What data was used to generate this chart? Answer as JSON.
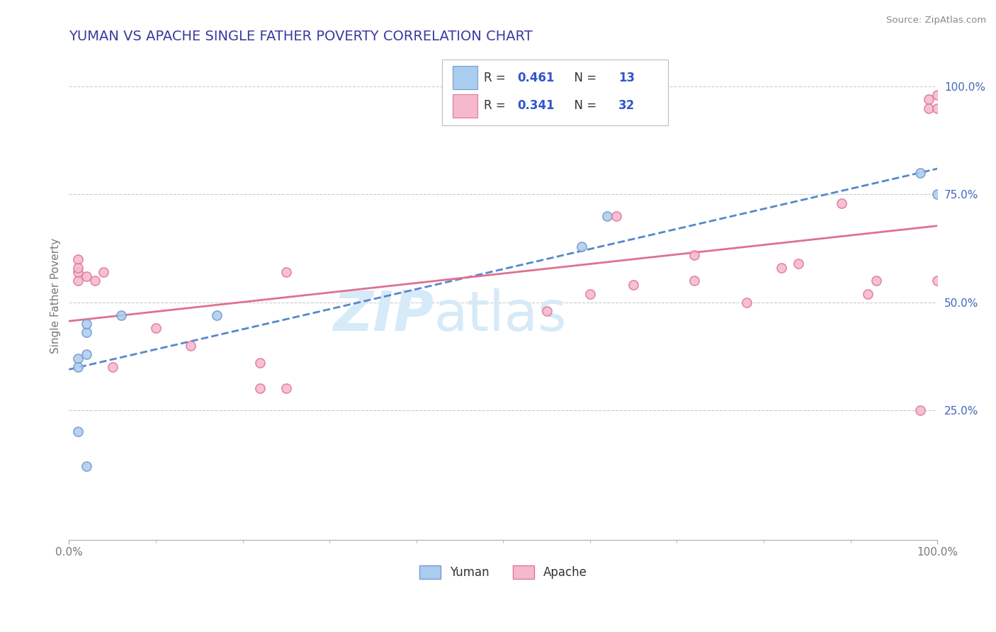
{
  "title": "YUMAN VS APACHE SINGLE FATHER POVERTY CORRELATION CHART",
  "source_text": "Source: ZipAtlas.com",
  "ylabel": "Single Father Poverty",
  "title_color": "#3a3a9f",
  "title_fontsize": 14,
  "watermark_zip": "ZIP",
  "watermark_atlas": "atlas",
  "legend_r1_label": "R = ",
  "legend_r1_val": "0.461",
  "legend_n1_label": "N = ",
  "legend_n1_val": "13",
  "legend_r2_label": "R = ",
  "legend_r2_val": "0.341",
  "legend_n2_label": "N = ",
  "legend_n2_val": "32",
  "yuman_fill": "#aaccee",
  "yuman_edge": "#7799cc",
  "apache_fill": "#f5b8cc",
  "apache_edge": "#e0789a",
  "line_yuman_color": "#5588cc",
  "line_apache_color": "#e07090",
  "background_color": "#ffffff",
  "grid_color": "#cccccc",
  "axis_label_color": "#777777",
  "ytick_color": "#4466bb",
  "watermark_color": "#d6eaf8",
  "marker_size": 90,
  "legend_text_color": "#333333",
  "legend_val_color": "#3355cc",
  "yuman_scatter_x": [
    0.01,
    0.01,
    0.01,
    0.02,
    0.02,
    0.02,
    0.02,
    0.06,
    0.17,
    0.59,
    0.62,
    0.98,
    1.0
  ],
  "yuman_scatter_y": [
    0.37,
    0.35,
    0.2,
    0.43,
    0.45,
    0.38,
    0.12,
    0.47,
    0.47,
    0.63,
    0.7,
    0.8,
    0.75
  ],
  "apache_scatter_x": [
    0.01,
    0.01,
    0.01,
    0.01,
    0.02,
    0.03,
    0.04,
    0.05,
    0.1,
    0.14,
    0.22,
    0.22,
    0.25,
    0.25,
    0.55,
    0.6,
    0.63,
    0.65,
    0.72,
    0.72,
    0.78,
    0.82,
    0.84,
    0.89,
    0.92,
    0.93,
    0.98,
    0.99,
    0.99,
    1.0,
    1.0,
    1.0
  ],
  "apache_scatter_y": [
    0.55,
    0.57,
    0.6,
    0.58,
    0.56,
    0.55,
    0.57,
    0.35,
    0.44,
    0.4,
    0.36,
    0.3,
    0.57,
    0.3,
    0.48,
    0.52,
    0.7,
    0.54,
    0.61,
    0.55,
    0.5,
    0.58,
    0.59,
    0.73,
    0.52,
    0.55,
    0.25,
    0.97,
    0.95,
    0.95,
    0.98,
    0.55
  ],
  "xlim": [
    0.0,
    1.0
  ],
  "ylim": [
    -0.05,
    1.08
  ]
}
